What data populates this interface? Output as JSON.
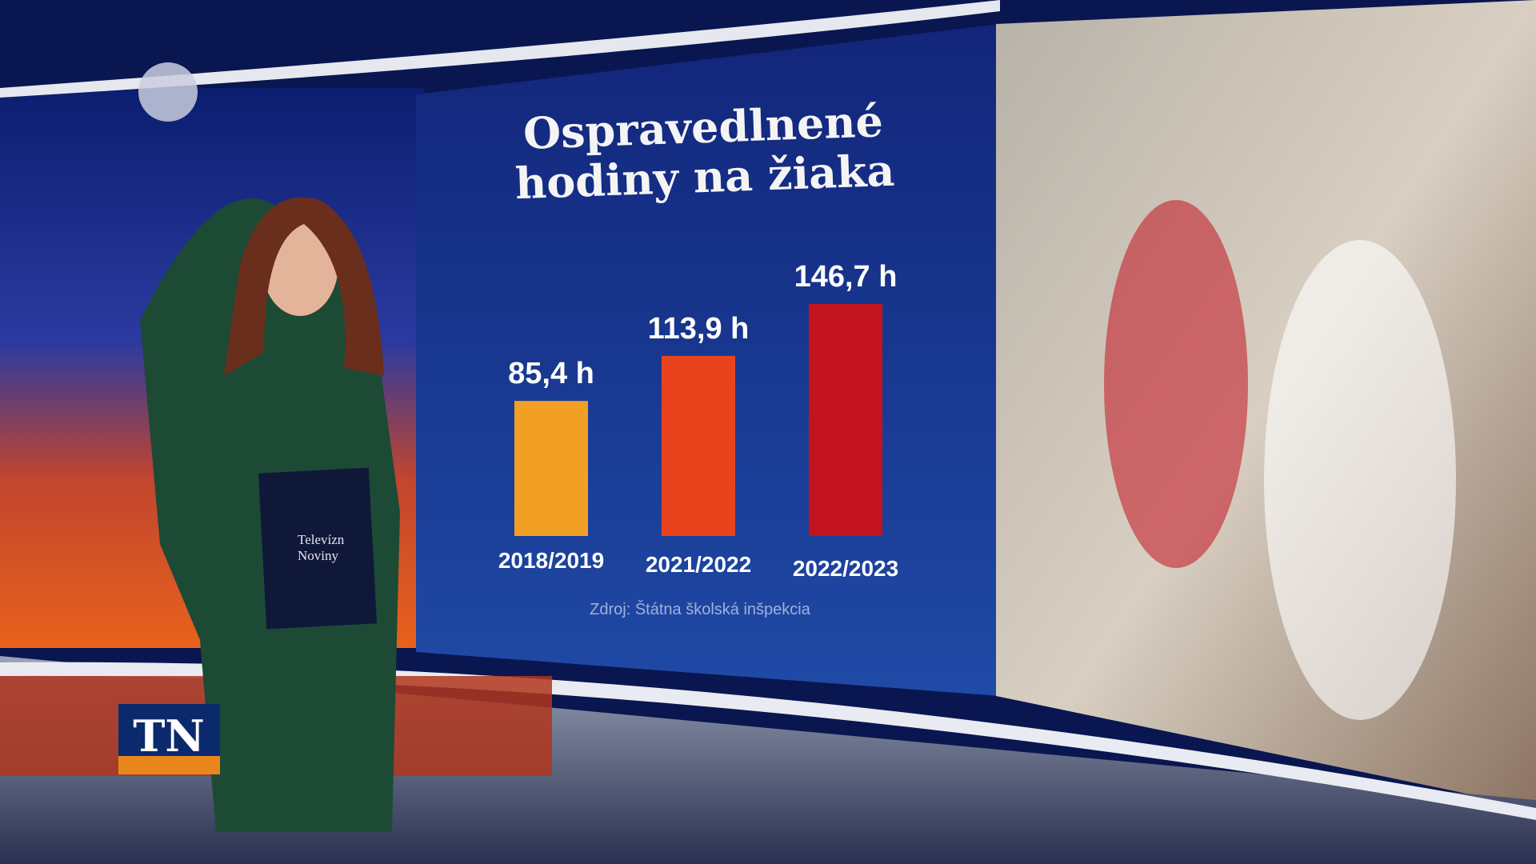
{
  "chart_data": {
    "type": "bar",
    "title": "Ospravedlnené hodiny na žiaka",
    "categories": [
      "2018/2019",
      "2021/2022",
      "2022/2023"
    ],
    "series": [
      {
        "values": [
          85.4,
          113.9,
          146.7
        ],
        "value_labels": [
          "85,4 h",
          "113,9 h",
          "146,7 h"
        ],
        "colors": [
          "#f2a024",
          "#e9431d",
          "#c2131f"
        ]
      }
    ],
    "source": "Zdroj: Štátna školská inšpekcia"
  },
  "logo": "TN",
  "folder": {
    "line1": "Televízn",
    "line2": "Noviny"
  }
}
